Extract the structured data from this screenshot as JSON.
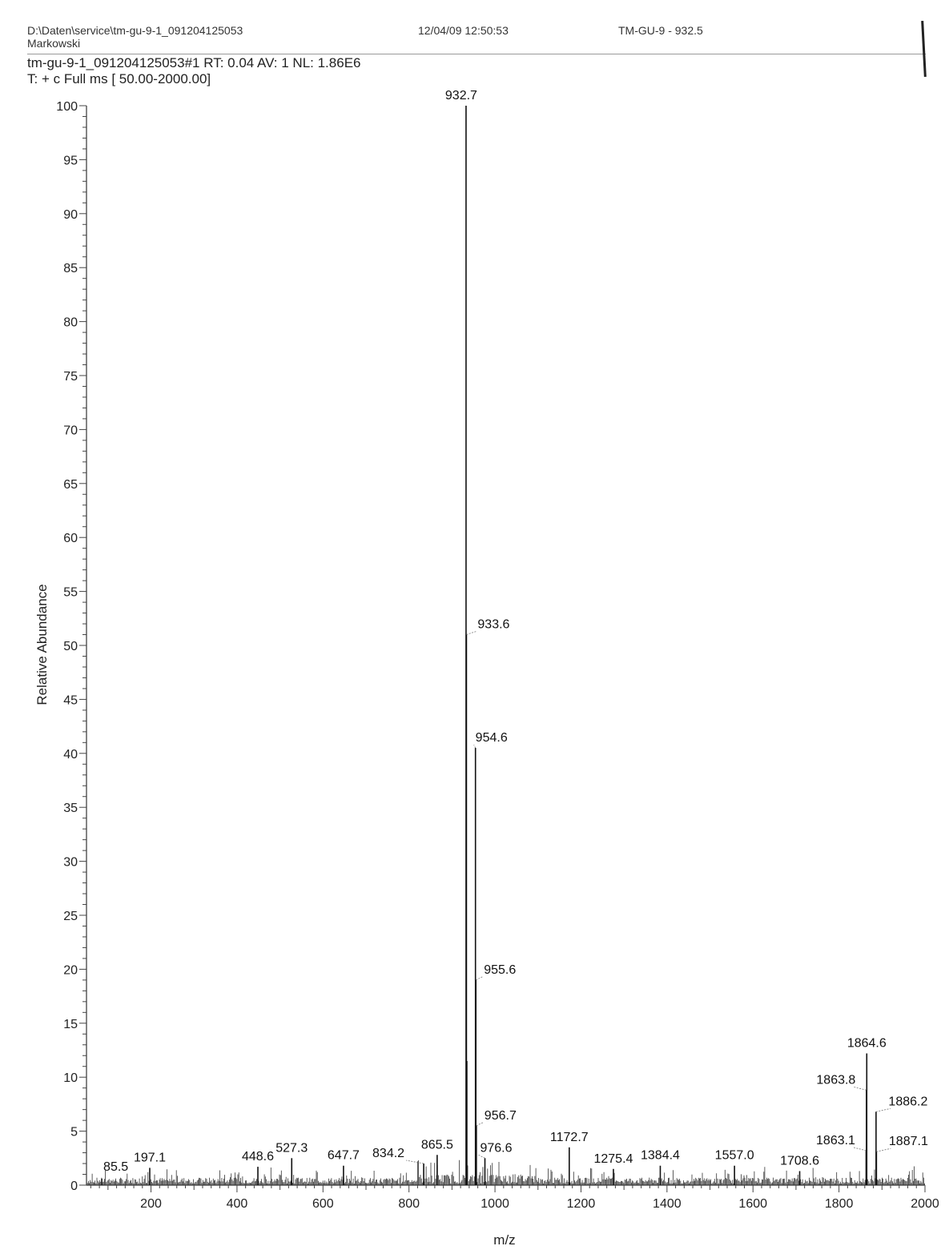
{
  "header": {
    "file_path": "D:\\Daten\\service\\tm-gu-9-1_091204125053",
    "operator": "Markowski",
    "datetime": "12/04/09 12:50:53",
    "sample": "TM-GU-9 - 932.5",
    "scan_info": "tm-gu-9-1_091204125053#1  RT: 0.04  AV: 1  NL: 1.86E6",
    "filter": "T: + c Full ms [ 50.00-2000.00]"
  },
  "chart_data": {
    "type": "bar",
    "title": "",
    "xlabel": "m/z",
    "ylabel": "Relative Abundance",
    "xlim": [
      50,
      2000
    ],
    "ylim": [
      0,
      100
    ],
    "x_ticks": [
      200,
      400,
      600,
      800,
      1000,
      1200,
      1400,
      1600,
      1800,
      2000
    ],
    "y_ticks": [
      0,
      5,
      10,
      15,
      20,
      25,
      30,
      35,
      40,
      45,
      50,
      55,
      60,
      65,
      70,
      75,
      80,
      85,
      90,
      95,
      100
    ],
    "grid": false,
    "legend": "none",
    "peaks": [
      {
        "mz": 85.5,
        "abundance": 0.6,
        "label": "85.5"
      },
      {
        "mz": 197.1,
        "abundance": 1.6,
        "label": "197.1"
      },
      {
        "mz": 448.6,
        "abundance": 1.7,
        "label": "448.6"
      },
      {
        "mz": 527.3,
        "abundance": 2.5,
        "label": "527.3"
      },
      {
        "mz": 647.7,
        "abundance": 1.8,
        "label": "647.7"
      },
      {
        "mz": 834.2,
        "abundance": 2.0,
        "label": "834.2"
      },
      {
        "mz": 865.5,
        "abundance": 2.8,
        "label": "865.5"
      },
      {
        "mz": 932.7,
        "abundance": 100.0,
        "label": "932.7"
      },
      {
        "mz": 933.6,
        "abundance": 51.0,
        "label": "933.6"
      },
      {
        "mz": 934.6,
        "abundance": 11.5,
        "label": ""
      },
      {
        "mz": 954.6,
        "abundance": 40.5,
        "label": "954.6"
      },
      {
        "mz": 955.6,
        "abundance": 19.0,
        "label": "955.6"
      },
      {
        "mz": 956.7,
        "abundance": 5.5,
        "label": "956.7"
      },
      {
        "mz": 976.6,
        "abundance": 2.5,
        "label": "976.6"
      },
      {
        "mz": 1172.7,
        "abundance": 3.5,
        "label": "1172.7"
      },
      {
        "mz": 1275.4,
        "abundance": 1.5,
        "label": "1275.4"
      },
      {
        "mz": 1384.4,
        "abundance": 1.8,
        "label": "1384.4"
      },
      {
        "mz": 1557.0,
        "abundance": 1.8,
        "label": "1557.0"
      },
      {
        "mz": 1708.6,
        "abundance": 1.3,
        "label": "1708.6"
      },
      {
        "mz": 1863.1,
        "abundance": 3.2,
        "label": "1863.1"
      },
      {
        "mz": 1863.8,
        "abundance": 8.8,
        "label": "1863.8"
      },
      {
        "mz": 1864.6,
        "abundance": 12.2,
        "label": "1864.6"
      },
      {
        "mz": 1886.2,
        "abundance": 6.8,
        "label": "1886.2"
      },
      {
        "mz": 1887.1,
        "abundance": 3.1,
        "label": "1887.1"
      }
    ]
  }
}
